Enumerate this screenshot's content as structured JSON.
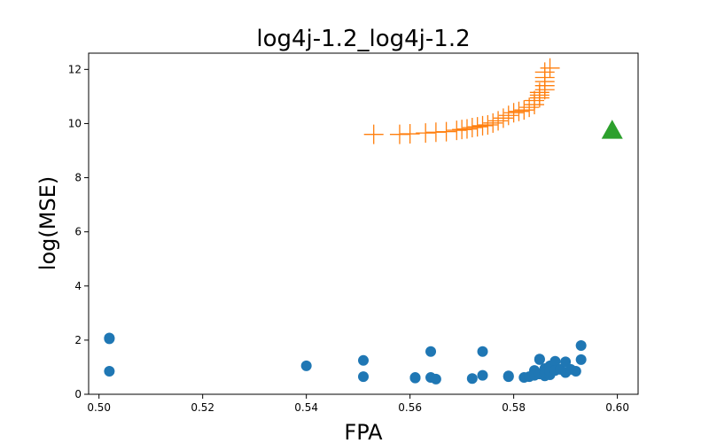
{
  "chart_data": {
    "type": "scatter",
    "title": "log4j-1.2_log4j-1.2",
    "xlabel": "FPA",
    "ylabel": "log(MSE)",
    "xlim": [
      0.498,
      0.604
    ],
    "ylim": [
      0,
      12.6
    ],
    "xticks": [
      0.5,
      0.52,
      0.54,
      0.56,
      0.58,
      0.6
    ],
    "xtick_labels": [
      "0.50",
      "0.52",
      "0.54",
      "0.56",
      "0.58",
      "0.60"
    ],
    "yticks": [
      0,
      2,
      4,
      6,
      8,
      10,
      12
    ],
    "ytick_labels": [
      "0",
      "2",
      "4",
      "6",
      "8",
      "10",
      "12"
    ],
    "grid": false,
    "series": [
      {
        "marker": "circle",
        "color": "#1f77b4",
        "x": [
          0.502,
          0.502,
          0.502,
          0.54,
          0.551,
          0.551,
          0.561,
          0.561,
          0.564,
          0.564,
          0.565,
          0.572,
          0.574,
          0.574,
          0.579,
          0.579,
          0.582,
          0.583,
          0.584,
          0.584,
          0.585,
          0.585,
          0.585,
          0.586,
          0.586,
          0.586,
          0.587,
          0.587,
          0.587,
          0.588,
          0.588,
          0.589,
          0.59,
          0.59,
          0.591,
          0.592,
          0.593,
          0.593
        ],
        "y": [
          2.08,
          2.05,
          0.85,
          1.05,
          1.25,
          0.65,
          0.62,
          0.6,
          1.58,
          0.62,
          0.56,
          0.58,
          1.58,
          0.7,
          0.65,
          0.68,
          0.62,
          0.65,
          0.88,
          0.7,
          1.3,
          0.75,
          1.28,
          0.95,
          0.68,
          0.8,
          0.72,
          1.05,
          0.85,
          1.22,
          0.88,
          0.92,
          0.8,
          1.2,
          0.92,
          0.85,
          1.28,
          1.8
        ]
      },
      {
        "marker": "plus",
        "color": "#ff7f0e",
        "x": [
          0.553,
          0.558,
          0.56,
          0.563,
          0.565,
          0.567,
          0.569,
          0.57,
          0.571,
          0.572,
          0.573,
          0.574,
          0.575,
          0.576,
          0.577,
          0.578,
          0.579,
          0.58,
          0.581,
          0.582,
          0.583,
          0.584,
          0.584,
          0.585,
          0.585,
          0.585,
          0.586,
          0.586,
          0.586,
          0.586,
          0.586,
          0.587
        ],
        "y": [
          9.6,
          9.6,
          9.62,
          9.65,
          9.68,
          9.7,
          9.75,
          9.78,
          9.8,
          9.85,
          9.88,
          9.92,
          9.95,
          10.02,
          10.1,
          10.2,
          10.3,
          10.4,
          10.45,
          10.5,
          10.6,
          10.7,
          10.85,
          10.95,
          11.05,
          11.15,
          11.25,
          11.4,
          11.55,
          11.7,
          11.9,
          12.05
        ]
      },
      {
        "marker": "triangle",
        "color": "#2ca02c",
        "x": [
          0.599
        ],
        "y": [
          9.75
        ]
      }
    ]
  }
}
